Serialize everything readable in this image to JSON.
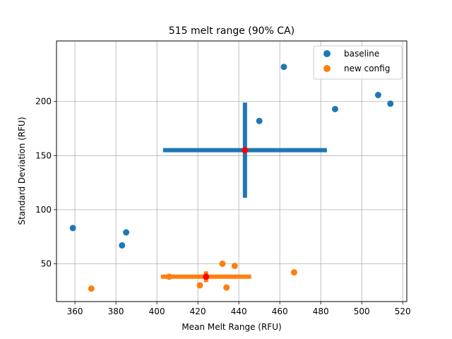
{
  "chart_data": {
    "type": "scatter",
    "title": "515 melt range (90% CA)",
    "xlabel": "Mean Melt Range (RFU)",
    "ylabel": "Standard Deviation (RFU)",
    "xlim": [
      351,
      522
    ],
    "ylim": [
      15,
      256
    ],
    "xticks": [
      360,
      380,
      400,
      420,
      440,
      460,
      480,
      500,
      520
    ],
    "yticks": [
      50,
      100,
      150,
      200
    ],
    "grid": true,
    "legend_position": "top-right",
    "series": [
      {
        "name": "baseline",
        "color": "#1f77b4",
        "points": [
          {
            "x": 359,
            "y": 83
          },
          {
            "x": 383,
            "y": 67
          },
          {
            "x": 385,
            "y": 79
          },
          {
            "x": 450,
            "y": 182
          },
          {
            "x": 462,
            "y": 232
          },
          {
            "x": 487,
            "y": 193
          },
          {
            "x": 508,
            "y": 206
          },
          {
            "x": 514,
            "y": 198
          }
        ],
        "mean": {
          "x": 443,
          "y": 155
        },
        "error_x": [
          403,
          483
        ],
        "error_y": [
          111,
          199
        ]
      },
      {
        "name": "new config",
        "color": "#ff7f0e",
        "points": [
          {
            "x": 368,
            "y": 27
          },
          {
            "x": 406,
            "y": 38
          },
          {
            "x": 421,
            "y": 30
          },
          {
            "x": 432,
            "y": 50
          },
          {
            "x": 434,
            "y": 28
          },
          {
            "x": 438,
            "y": 48
          },
          {
            "x": 467,
            "y": 42
          }
        ],
        "mean": {
          "x": 424,
          "y": 38
        },
        "error_x": [
          402,
          446
        ],
        "error_y": [
          33,
          43
        ]
      }
    ],
    "mean_marker_color": "#ff0000"
  }
}
